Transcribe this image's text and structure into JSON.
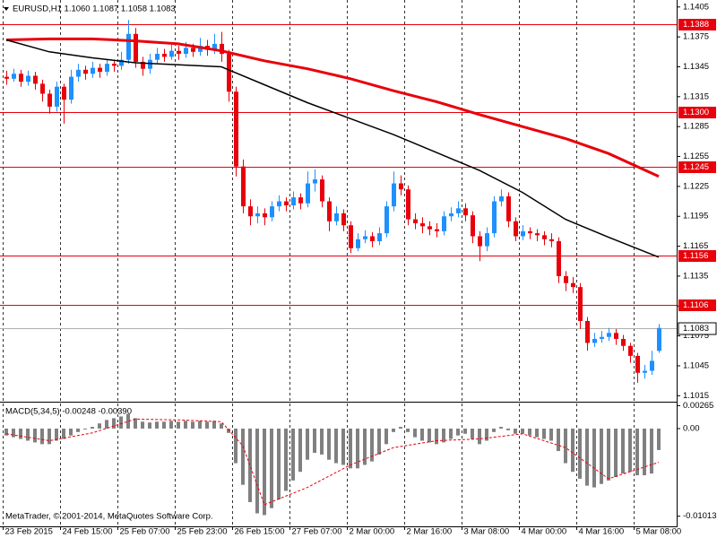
{
  "chart_data": {
    "type": "candlestick",
    "title": "EURUSD,H1  1.1060 1.1087 1.1058 1.1083",
    "footer": "MetaTrader, © 2001-2014, MetaQuotes Software Corp.",
    "up_color": "#1e90ff",
    "down_color": "#e8000b",
    "xlim": [
      0,
      92
    ],
    "xticks": [
      {
        "value": 0,
        "label": "23 Feb 2015"
      },
      {
        "value": 8,
        "label": "24 Feb 15:00"
      },
      {
        "value": 16,
        "label": "25 Feb 07:00"
      },
      {
        "value": 24,
        "label": "25 Feb 23:00"
      },
      {
        "value": 32,
        "label": "26 Feb 15:00"
      },
      {
        "value": 40,
        "label": "27 Feb 07:00"
      },
      {
        "value": 48,
        "label": "2 Mar 00:00"
      },
      {
        "value": 56,
        "label": "2 Mar 16:00"
      },
      {
        "value": 64,
        "label": "3 Mar 08:00"
      },
      {
        "value": 72,
        "label": "4 Mar 00:00"
      },
      {
        "value": 80,
        "label": "4 Mar 16:00"
      },
      {
        "value": 88,
        "label": "5 Mar 08:00"
      }
    ],
    "ylim": [
      1.1009,
      1.1412
    ],
    "yticks": [
      1.1405,
      1.1375,
      1.1345,
      1.1315,
      1.1285,
      1.1255,
      1.1225,
      1.1195,
      1.1165,
      1.1135,
      1.1105,
      1.1075,
      1.1045,
      1.1015
    ],
    "level_color": "#e8000b",
    "levels": [
      1.1388,
      {
        "value": 1.13,
        "label": "1.1300"
      },
      1.1245,
      1.1156,
      1.1106
    ],
    "bid": 1.1083,
    "ohlc": [
      [
        1.1335,
        1.1341,
        1.1327,
        1.1333
      ],
      [
        1.1333,
        1.1343,
        1.133,
        1.1338
      ],
      [
        1.1338,
        1.1342,
        1.1325,
        1.133
      ],
      [
        1.133,
        1.1341,
        1.1326,
        1.1336
      ],
      [
        1.1336,
        1.134,
        1.1322,
        1.1328
      ],
      [
        1.1328,
        1.1332,
        1.131,
        1.1318
      ],
      [
        1.1318,
        1.1322,
        1.1298,
        1.1305
      ],
      [
        1.1305,
        1.133,
        1.13,
        1.1325
      ],
      [
        1.1325,
        1.1328,
        1.1288,
        1.1312
      ],
      [
        1.1312,
        1.1342,
        1.1308,
        1.1335
      ],
      [
        1.1335,
        1.1348,
        1.133,
        1.1342
      ],
      [
        1.1342,
        1.1346,
        1.1332,
        1.1338
      ],
      [
        1.1338,
        1.135,
        1.1334,
        1.1344
      ],
      [
        1.1344,
        1.1348,
        1.1334,
        1.134
      ],
      [
        1.134,
        1.1353,
        1.1336,
        1.1348
      ],
      [
        1.1348,
        1.1352,
        1.134,
        1.1346
      ],
      [
        1.1346,
        1.136,
        1.1342,
        1.1352
      ],
      [
        1.1352,
        1.1392,
        1.1348,
        1.1378
      ],
      [
        1.1378,
        1.1384,
        1.1344,
        1.135
      ],
      [
        1.135,
        1.1355,
        1.1336,
        1.1343
      ],
      [
        1.1343,
        1.1358,
        1.1338,
        1.1352
      ],
      [
        1.1352,
        1.1364,
        1.1348,
        1.1358
      ],
      [
        1.1358,
        1.1363,
        1.135,
        1.1355
      ],
      [
        1.1355,
        1.1368,
        1.1352,
        1.1361
      ],
      [
        1.1361,
        1.1366,
        1.1352,
        1.1358
      ],
      [
        1.1358,
        1.137,
        1.1354,
        1.1364
      ],
      [
        1.1364,
        1.1368,
        1.1355,
        1.136
      ],
      [
        1.136,
        1.1374,
        1.1356,
        1.1366
      ],
      [
        1.1366,
        1.1372,
        1.1356,
        1.1362
      ],
      [
        1.1362,
        1.1378,
        1.1358,
        1.1368
      ],
      [
        1.1368,
        1.138,
        1.135,
        1.1358
      ],
      [
        1.1358,
        1.1362,
        1.131,
        1.132
      ],
      [
        1.132,
        1.1325,
        1.1235,
        1.1245
      ],
      [
        1.1245,
        1.1252,
        1.1198,
        1.1205
      ],
      [
        1.1205,
        1.1212,
        1.1186,
        1.1195
      ],
      [
        1.1195,
        1.1205,
        1.1188,
        1.1198
      ],
      [
        1.1198,
        1.1203,
        1.1186,
        1.1194
      ],
      [
        1.1194,
        1.121,
        1.119,
        1.1205
      ],
      [
        1.1205,
        1.1216,
        1.12,
        1.121
      ],
      [
        1.121,
        1.1214,
        1.12,
        1.1206
      ],
      [
        1.1206,
        1.122,
        1.1202,
        1.1214
      ],
      [
        1.1214,
        1.1218,
        1.1202,
        1.1208
      ],
      [
        1.1208,
        1.124,
        1.1204,
        1.1228
      ],
      [
        1.1228,
        1.1242,
        1.122,
        1.1232
      ],
      [
        1.1232,
        1.1236,
        1.1204,
        1.121
      ],
      [
        1.121,
        1.1214,
        1.118,
        1.119
      ],
      [
        1.119,
        1.1205,
        1.1186,
        1.1198
      ],
      [
        1.1198,
        1.1202,
        1.118,
        1.1186
      ],
      [
        1.1186,
        1.119,
        1.1158,
        1.1163
      ],
      [
        1.1163,
        1.1178,
        1.116,
        1.1172
      ],
      [
        1.1172,
        1.1181,
        1.1168,
        1.1175
      ],
      [
        1.1175,
        1.1179,
        1.1164,
        1.117
      ],
      [
        1.117,
        1.1184,
        1.1166,
        1.1178
      ],
      [
        1.1178,
        1.121,
        1.1174,
        1.1205
      ],
      [
        1.1205,
        1.124,
        1.12,
        1.1228
      ],
      [
        1.1228,
        1.1236,
        1.1216,
        1.1222
      ],
      [
        1.1222,
        1.1226,
        1.1186,
        1.1192
      ],
      [
        1.1192,
        1.1198,
        1.1182,
        1.1188
      ],
      [
        1.1188,
        1.1194,
        1.1178,
        1.1185
      ],
      [
        1.1185,
        1.119,
        1.1176,
        1.1182
      ],
      [
        1.1182,
        1.1188,
        1.1174,
        1.118
      ],
      [
        1.118,
        1.12,
        1.1176,
        1.1195
      ],
      [
        1.1195,
        1.1204,
        1.119,
        1.1198
      ],
      [
        1.1198,
        1.121,
        1.1194,
        1.1203
      ],
      [
        1.1203,
        1.1208,
        1.119,
        1.1196
      ],
      [
        1.1196,
        1.12,
        1.1168,
        1.1175
      ],
      [
        1.1175,
        1.118,
        1.115,
        1.1165
      ],
      [
        1.1165,
        1.1184,
        1.116,
        1.1178
      ],
      [
        1.1178,
        1.1215,
        1.1174,
        1.121
      ],
      [
        1.121,
        1.1222,
        1.1205,
        1.1215
      ],
      [
        1.1215,
        1.1219,
        1.1184,
        1.119
      ],
      [
        1.119,
        1.1194,
        1.117,
        1.1175
      ],
      [
        1.1175,
        1.1186,
        1.1171,
        1.118
      ],
      [
        1.118,
        1.1184,
        1.1172,
        1.1178
      ],
      [
        1.1178,
        1.1182,
        1.117,
        1.1176
      ],
      [
        1.1176,
        1.118,
        1.1166,
        1.1172
      ],
      [
        1.1172,
        1.1178,
        1.1164,
        1.117
      ],
      [
        1.117,
        1.1174,
        1.1128,
        1.1135
      ],
      [
        1.1135,
        1.114,
        1.112,
        1.1128
      ],
      [
        1.1128,
        1.1134,
        1.1118,
        1.1124
      ],
      [
        1.1124,
        1.1128,
        1.1082,
        1.109
      ],
      [
        1.109,
        1.1094,
        1.106,
        1.1068
      ],
      [
        1.1068,
        1.1078,
        1.1064,
        1.1072
      ],
      [
        1.1072,
        1.108,
        1.1068,
        1.1074
      ],
      [
        1.1074,
        1.1083,
        1.107,
        1.1078
      ],
      [
        1.1078,
        1.1082,
        1.1066,
        1.1072
      ],
      [
        1.1072,
        1.1076,
        1.106,
        1.1065
      ],
      [
        1.1065,
        1.1068,
        1.1048,
        1.1055
      ],
      [
        1.1055,
        1.1058,
        1.1028,
        1.1038
      ],
      [
        1.1038,
        1.1046,
        1.1032,
        1.104
      ],
      [
        1.104,
        1.106,
        1.1036,
        1.105
      ],
      [
        1.106,
        1.1087,
        1.1058,
        1.1083
      ]
    ],
    "ma": [
      {
        "color": "#e8000b",
        "width": 3,
        "x": [
          0,
          6,
          12,
          18,
          24,
          30,
          36,
          42,
          48,
          54,
          60,
          66,
          72,
          78,
          84,
          91
        ],
        "values": [
          1.1372,
          1.1373,
          1.1373,
          1.1371,
          1.1368,
          1.1361,
          1.1351,
          1.1343,
          1.1333,
          1.1321,
          1.131,
          1.1297,
          1.1285,
          1.1273,
          1.1258,
          1.1235
        ]
      },
      {
        "color": "#000000",
        "width": 1.5,
        "x": [
          0,
          6,
          12,
          18,
          24,
          30,
          36,
          42,
          48,
          54,
          60,
          66,
          72,
          78,
          84,
          91
        ],
        "values": [
          1.1372,
          1.136,
          1.1354,
          1.1349,
          1.1347,
          1.1345,
          1.1327,
          1.1309,
          1.1293,
          1.1277,
          1.1259,
          1.1241,
          1.1219,
          1.1192,
          1.1174,
          1.1154
        ]
      }
    ],
    "macd": {
      "type": "bar",
      "title": "MACD(5,34,5) -0.00248 -0.00390",
      "color": "#808080",
      "ylim": [
        -0.0112,
        0.0029
      ],
      "yticks": [
        0.00265,
        {
          "value": 0,
          "label": "0.00"
        },
        -0.01013
      ],
      "values": [
        -0.0008,
        -0.001,
        -0.0012,
        -0.0014,
        -0.0016,
        -0.0018,
        -0.0018,
        -0.0014,
        -0.0012,
        -0.0008,
        -0.0004,
        -0.0001,
        0.0002,
        0.0006,
        0.001,
        0.0012,
        0.0014,
        0.0017,
        0.0012,
        0.0008,
        0.0007,
        0.0008,
        0.0008,
        0.0009,
        0.0008,
        0.0009,
        0.0008,
        0.0009,
        0.0008,
        0.0009,
        0.0006,
        -0.0005,
        -0.004,
        -0.0065,
        -0.0085,
        -0.0098,
        -0.01,
        -0.0092,
        -0.0082,
        -0.0072,
        -0.006,
        -0.005,
        -0.0036,
        -0.0028,
        -0.003,
        -0.0036,
        -0.004,
        -0.0042,
        -0.0046,
        -0.0046,
        -0.0042,
        -0.0038,
        -0.003,
        -0.0018,
        -0.0004,
        0.0002,
        -0.0004,
        -0.001,
        -0.0014,
        -0.0016,
        -0.0018,
        -0.0016,
        -0.0012,
        -0.0008,
        -0.0006,
        -0.0012,
        -0.0018,
        -0.0014,
        -0.0004,
        0.0002,
        -0.0002,
        -0.0006,
        -0.0006,
        -0.0008,
        -0.001,
        -0.0012,
        -0.0014,
        -0.0026,
        -0.004,
        -0.005,
        -0.0058,
        -0.0066,
        -0.0068,
        -0.0064,
        -0.006,
        -0.0056,
        -0.0052,
        -0.005,
        -0.0054,
        -0.0054,
        -0.0052,
        -0.00248
      ],
      "signal": {
        "color": "#e8000b",
        "x": [
          0,
          6,
          12,
          18,
          24,
          30,
          33,
          36,
          42,
          48,
          54,
          60,
          66,
          72,
          78,
          84,
          91
        ],
        "values": [
          -0.0006,
          -0.0014,
          -0.0005,
          0.0011,
          0.001,
          0.0008,
          -0.002,
          -0.0088,
          -0.0068,
          -0.0042,
          -0.0022,
          -0.0014,
          -0.0012,
          -0.0006,
          -0.0022,
          -0.0058,
          -0.0039
        ]
      }
    }
  }
}
